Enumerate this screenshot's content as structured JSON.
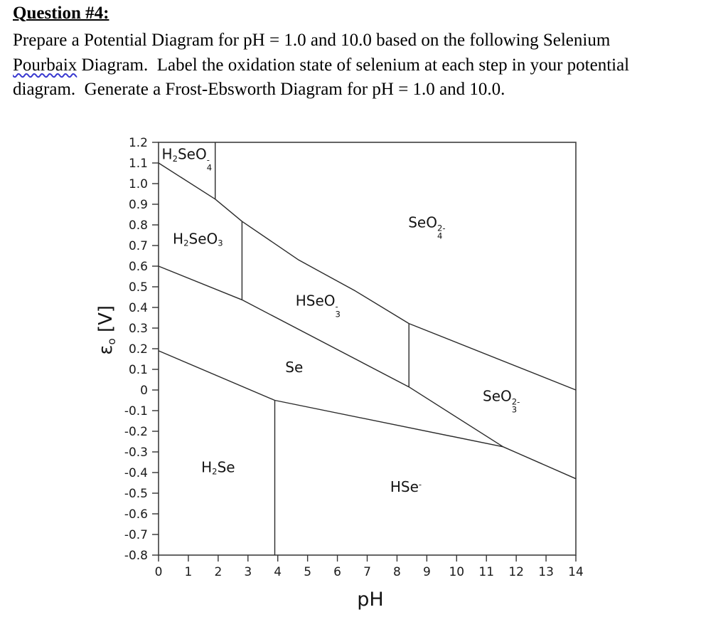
{
  "question": {
    "title": "Question #4:",
    "body_lines": [
      {
        "segments": [
          {
            "text": "Prepare a Potential Diagram for pH = 1.0 and 10.0 based on the following Selenium"
          }
        ]
      },
      {
        "segments": [
          {
            "text": "Pourbaix",
            "squiggle": true
          },
          {
            "text": " Diagram.  Label the oxidation state of selenium at each step in your potential"
          }
        ]
      },
      {
        "segments": [
          {
            "text": "diagram.  Generate a Frost-Ebsworth Diagram for pH = 1.0 and 10.0."
          }
        ]
      }
    ],
    "squiggle_color": "#3a3ad0"
  },
  "chart_data": {
    "type": "line",
    "description": "Selenium Pourbaix diagram (potential vs pH phase diagram)",
    "xlabel": "pH",
    "ylabel_text": "εo [V]",
    "ylabel_segments": [
      {
        "t": "ε"
      },
      {
        "t": "o",
        "s": "sub"
      },
      {
        "t": " [V]"
      }
    ],
    "xlim": [
      0,
      14
    ],
    "ylim": [
      -0.8,
      1.2
    ],
    "grid": false,
    "x_tick_labels": [
      "0",
      "1",
      "2",
      "3",
      "4",
      "5",
      "6",
      "7",
      "8",
      "9",
      "10",
      "11",
      "12",
      "13",
      "14"
    ],
    "y_tick_labels": [
      "1.2",
      "1.1",
      "1.0",
      "0.9",
      "0.8",
      "0.7",
      "0.6",
      "0.5",
      "0.4",
      "0.3",
      "0.2",
      "0.1",
      "0",
      "-0.1",
      "-0.2",
      "-0.3",
      "-0.4",
      "-0.5",
      "-0.6",
      "-0.7",
      "-0.8"
    ],
    "line_color": "#2a2a2a",
    "frame_color": "#4a4a4a",
    "regions": [
      {
        "id": "h2seo4",
        "label": "H₂SeO₄⁻",
        "pH": 0.95,
        "V": 1.12,
        "segments": [
          {
            "t": "H"
          },
          {
            "t": "2",
            "s": "sub"
          },
          {
            "t": "SeO"
          },
          {
            "s": "stack",
            "sup": "-",
            "sub": "4"
          }
        ]
      },
      {
        "id": "h2seo3",
        "label": "H₂SeO₃",
        "pH": 1.32,
        "V": 0.73,
        "segments": [
          {
            "t": "H"
          },
          {
            "t": "2",
            "s": "sub"
          },
          {
            "t": "SeO"
          },
          {
            "t": "3",
            "s": "sub"
          }
        ]
      },
      {
        "id": "seo4",
        "label": "SeO₄²⁻",
        "pH": 9.0,
        "V": 0.79,
        "segments": [
          {
            "t": "SeO"
          },
          {
            "s": "stack",
            "sup": "2-",
            "sub": "4"
          }
        ]
      },
      {
        "id": "hseo3",
        "label": "HSeO₃⁻",
        "pH": 5.35,
        "V": 0.41,
        "segments": [
          {
            "t": "HSeO"
          },
          {
            "s": "stack",
            "sup": "-",
            "sub": "3"
          }
        ]
      },
      {
        "id": "se",
        "label": "Se",
        "pH": 4.55,
        "V": 0.11,
        "segments": [
          {
            "t": "Se"
          }
        ]
      },
      {
        "id": "seo3",
        "label": "SeO₃²⁻",
        "pH": 11.5,
        "V": -0.05,
        "segments": [
          {
            "t": "SeO"
          },
          {
            "s": "stack",
            "sup": "2-",
            "sub": "3"
          }
        ]
      },
      {
        "id": "h2se",
        "label": "H₂Se",
        "pH": 2.0,
        "V": -0.375,
        "segments": [
          {
            "t": "H"
          },
          {
            "t": "2",
            "s": "sub"
          },
          {
            "t": "Se"
          }
        ]
      },
      {
        "id": "hse",
        "label": "HSe⁻",
        "pH": 8.3,
        "V": -0.47,
        "segments": [
          {
            "t": "HSe"
          },
          {
            "t": "-",
            "s": "sup"
          }
        ]
      }
    ],
    "boundaries": [
      {
        "name": "h2seo4-diagonal",
        "points": [
          [
            0,
            1.1
          ],
          [
            1.9,
            0.925
          ],
          [
            2.8,
            0.817
          ]
        ]
      },
      {
        "name": "h2seo4-seo4-vertical",
        "points": [
          [
            1.9,
            1.2
          ],
          [
            1.9,
            0.925
          ]
        ]
      },
      {
        "name": "seo4-hseo3",
        "points": [
          [
            2.8,
            0.817
          ],
          [
            4.7,
            0.63
          ],
          [
            6.6,
            0.48
          ],
          [
            8.4,
            0.322
          ]
        ]
      },
      {
        "name": "seo4-seo3",
        "points": [
          [
            8.4,
            0.322
          ],
          [
            14,
            0.0
          ]
        ]
      },
      {
        "name": "h2seo3-hseo3-vertical",
        "points": [
          [
            2.8,
            0.817
          ],
          [
            2.8,
            0.437
          ]
        ]
      },
      {
        "name": "h2seo3-se",
        "points": [
          [
            0,
            0.6
          ],
          [
            2.8,
            0.437
          ]
        ]
      },
      {
        "name": "hseo3-se",
        "points": [
          [
            2.8,
            0.437
          ],
          [
            8.4,
            0.015
          ]
        ]
      },
      {
        "name": "hseo3-seo3-vertical",
        "points": [
          [
            8.4,
            0.322
          ],
          [
            8.4,
            0.015
          ]
        ]
      },
      {
        "name": "seo3-se",
        "points": [
          [
            8.4,
            0.015
          ],
          [
            11.56,
            -0.275
          ]
        ]
      },
      {
        "name": "se-h2se",
        "points": [
          [
            0,
            0.19
          ],
          [
            3.9,
            -0.05
          ]
        ]
      },
      {
        "name": "h2se-hse-vertical",
        "points": [
          [
            3.9,
            -0.05
          ],
          [
            3.9,
            -0.8
          ]
        ]
      },
      {
        "name": "se-hse",
        "points": [
          [
            3.9,
            -0.05
          ],
          [
            11.56,
            -0.275
          ]
        ]
      },
      {
        "name": "seo3-hse",
        "points": [
          [
            11.56,
            -0.275
          ],
          [
            14,
            -0.43
          ]
        ]
      }
    ]
  }
}
